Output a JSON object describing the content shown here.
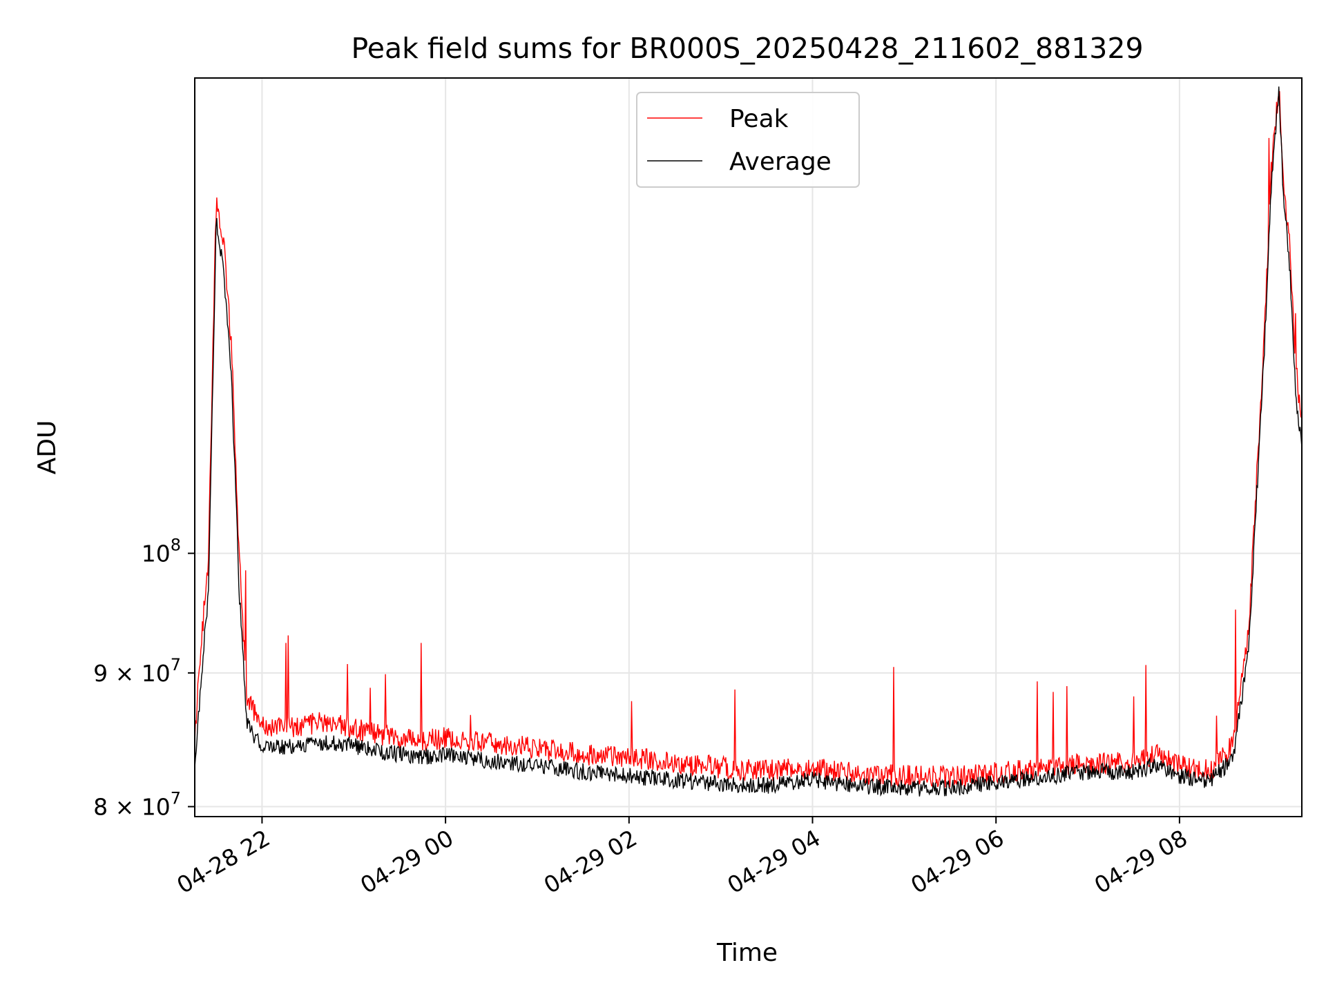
{
  "chart_data": {
    "type": "line",
    "title": "Peak field sums for BR000S_20250428_211602_881329",
    "xlabel": "Time",
    "ylabel": "ADU",
    "xlim": [
      "2025-04-28 21:16",
      "2025-04-29 09:20"
    ],
    "ylim": [
      79300000,
      152000000
    ],
    "yscale": "log",
    "grid": true,
    "legend_position": "upper-center",
    "x_ticks": [
      {
        "value": "2025-04-28 22:00",
        "label": "04-28 22"
      },
      {
        "value": "2025-04-29 00:00",
        "label": "04-29 00"
      },
      {
        "value": "2025-04-29 02:00",
        "label": "04-29 02"
      },
      {
        "value": "2025-04-29 04:00",
        "label": "04-29 04"
      },
      {
        "value": "2025-04-29 06:00",
        "label": "04-29 06"
      },
      {
        "value": "2025-04-29 08:00",
        "label": "04-29 08"
      }
    ],
    "y_ticks": [
      {
        "value": 80000000,
        "mantissa": "8",
        "base": "10",
        "exp": "7"
      },
      {
        "value": 90000000,
        "mantissa": "9",
        "base": "10",
        "exp": "7"
      },
      {
        "value": 100000000,
        "mantissa": "",
        "base": "10",
        "exp": "8"
      }
    ],
    "series": [
      {
        "name": "Peak",
        "color": "#ff0000",
        "x": [
          "2025-04-28 21:16",
          "2025-04-28 21:20",
          "2025-04-28 21:25",
          "2025-04-28 21:30",
          "2025-04-28 21:35",
          "2025-04-28 21:40",
          "2025-04-28 21:45",
          "2025-04-28 21:50",
          "2025-04-28 22:00",
          "2025-04-28 22:15",
          "2025-04-28 22:30",
          "2025-04-28 22:45",
          "2025-04-28 23:00",
          "2025-04-28 23:15",
          "2025-04-28 23:30",
          "2025-04-28 23:45",
          "2025-04-29 00:00",
          "2025-04-29 00:30",
          "2025-04-29 01:00",
          "2025-04-29 01:30",
          "2025-04-29 02:00",
          "2025-04-29 02:30",
          "2025-04-29 03:00",
          "2025-04-29 03:30",
          "2025-04-29 04:00",
          "2025-04-29 04:30",
          "2025-04-29 05:00",
          "2025-04-29 05:30",
          "2025-04-29 06:00",
          "2025-04-29 06:30",
          "2025-04-29 07:00",
          "2025-04-29 07:30",
          "2025-04-29 07:45",
          "2025-04-29 08:00",
          "2025-04-29 08:20",
          "2025-04-29 08:35",
          "2025-04-29 08:45",
          "2025-04-29 08:55",
          "2025-04-29 09:00",
          "2025-04-29 09:05",
          "2025-04-29 09:08",
          "2025-04-29 09:12",
          "2025-04-29 09:16",
          "2025-04-29 09:20"
        ],
        "values": [
          85000000,
          92000000,
          100000000,
          136000000,
          132000000,
          120000000,
          100000000,
          88000000,
          86000000,
          85800000,
          86000000,
          86200000,
          85700000,
          85300000,
          85000000,
          84800000,
          85000000,
          84600000,
          84200000,
          83800000,
          83500000,
          83200000,
          82800000,
          82600000,
          82800000,
          82300000,
          82200000,
          82100000,
          82400000,
          82700000,
          83100000,
          83200000,
          83800000,
          82900000,
          82600000,
          84500000,
          93000000,
          120000000,
          140000000,
          151000000,
          138000000,
          132000000,
          118000000,
          112000000
        ]
      },
      {
        "name": "Average",
        "color": "#000000",
        "x": [
          "2025-04-28 21:16",
          "2025-04-28 21:20",
          "2025-04-28 21:25",
          "2025-04-28 21:30",
          "2025-04-28 21:35",
          "2025-04-28 21:40",
          "2025-04-28 21:45",
          "2025-04-28 21:50",
          "2025-04-28 22:00",
          "2025-04-28 22:15",
          "2025-04-28 22:30",
          "2025-04-28 22:45",
          "2025-04-28 23:00",
          "2025-04-28 23:15",
          "2025-04-28 23:30",
          "2025-04-28 23:45",
          "2025-04-29 00:00",
          "2025-04-29 00:30",
          "2025-04-29 01:00",
          "2025-04-29 01:30",
          "2025-04-29 02:00",
          "2025-04-29 02:30",
          "2025-04-29 03:00",
          "2025-04-29 03:30",
          "2025-04-29 04:00",
          "2025-04-29 04:30",
          "2025-04-29 05:00",
          "2025-04-29 05:30",
          "2025-04-29 06:00",
          "2025-04-29 06:30",
          "2025-04-29 07:00",
          "2025-04-29 07:30",
          "2025-04-29 07:45",
          "2025-04-29 08:00",
          "2025-04-29 08:20",
          "2025-04-29 08:35",
          "2025-04-29 08:45",
          "2025-04-29 08:55",
          "2025-04-29 09:00",
          "2025-04-29 09:05",
          "2025-04-29 09:08",
          "2025-04-29 09:12",
          "2025-04-29 09:16",
          "2025-04-29 09:20"
        ],
        "values": [
          83000000,
          89000000,
          97000000,
          134000000,
          128000000,
          117000000,
          97000000,
          86000000,
          84200000,
          84300000,
          84500000,
          84700000,
          84400000,
          84000000,
          83800000,
          83600000,
          83700000,
          83300000,
          82900000,
          82500000,
          82200000,
          81900000,
          81600000,
          81500000,
          81900000,
          81500000,
          81300000,
          81300000,
          81700000,
          82100000,
          82500000,
          82500000,
          83000000,
          82200000,
          81800000,
          83500000,
          91500000,
          118000000,
          138000000,
          150000000,
          137000000,
          129000000,
          115000000,
          110000000
        ]
      }
    ]
  }
}
